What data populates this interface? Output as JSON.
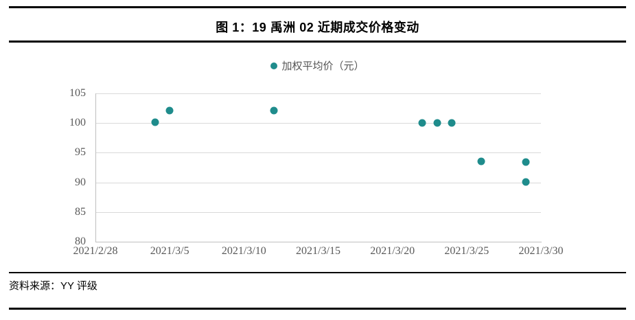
{
  "header": {
    "title": "图 1：19 禹洲 02 近期成交价格变动"
  },
  "chart_data": {
    "type": "scatter",
    "title": "19 禹洲 02 近期成交价格变动",
    "series": [
      {
        "name": "加权平均价（元）",
        "color": "#1f8c8c",
        "points": [
          {
            "date": "2021/3/4",
            "value": 100.1
          },
          {
            "date": "2021/3/5",
            "value": 102.1
          },
          {
            "date": "2021/3/12",
            "value": 102.1
          },
          {
            "date": "2021/3/22",
            "value": 100.0
          },
          {
            "date": "2021/3/23",
            "value": 100.0
          },
          {
            "date": "2021/3/24",
            "value": 100.0
          },
          {
            "date": "2021/3/26",
            "value": 93.5
          },
          {
            "date": "2021/3/29",
            "value": 93.4
          },
          {
            "date": "2021/3/29",
            "value": 90.1
          }
        ]
      }
    ],
    "x_ticks": [
      "2021/2/28",
      "2021/3/5",
      "2021/3/10",
      "2021/3/15",
      "2021/3/20",
      "2021/3/25",
      "2021/3/30"
    ],
    "y_ticks": [
      105,
      100,
      95,
      90,
      85,
      80
    ],
    "xlim": [
      "2021/2/28",
      "2021/3/30"
    ],
    "ylim": [
      80,
      105
    ],
    "grid": true,
    "legend_position": "top-center",
    "colors": {
      "point": "#1f8c8c",
      "gridline": "#d9d9d9",
      "axis_line": "#bfbfbf",
      "tick_text": "#595959"
    }
  },
  "footer": {
    "source": "资料来源：YY 评级"
  }
}
